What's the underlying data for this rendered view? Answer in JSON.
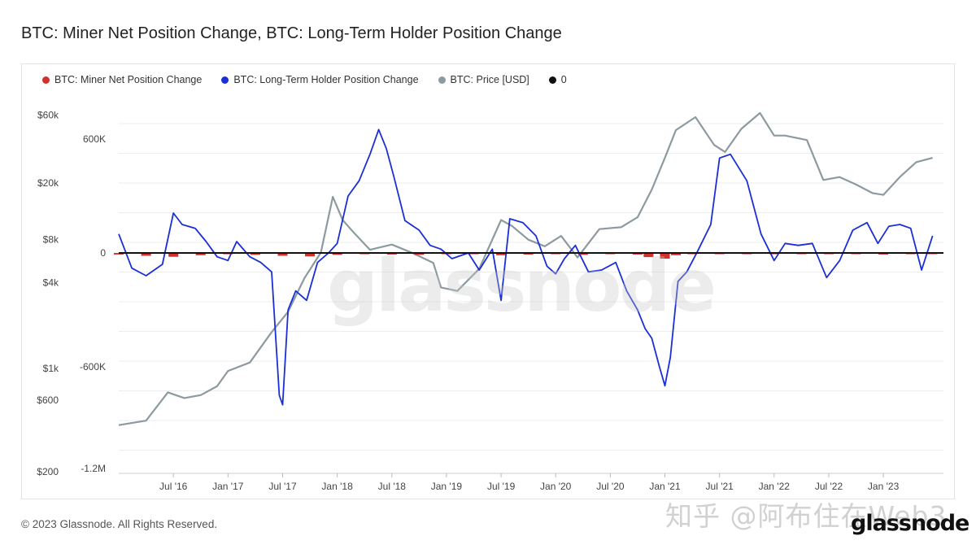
{
  "header": {
    "title": "BTC: Miner Net Position Change, BTC: Long-Term Holder Position Change"
  },
  "legend": [
    {
      "label": "BTC: Miner Net Position Change",
      "color": "#d0312d"
    },
    {
      "label": "BTC: Long-Term Holder Position Change",
      "color": "#1a2fd6"
    },
    {
      "label": "BTC: Price [USD]",
      "color": "#8d9aa0"
    },
    {
      "label": "0",
      "color": "#111111"
    }
  ],
  "footer": {
    "copyright": "© 2023 Glassnode. All Rights Reserved.",
    "watermark_text": "知乎 @阿布住在Web3",
    "logo_text": "glassnode"
  },
  "chart_watermark": "glassnode",
  "chart_data": {
    "type": "line",
    "x_range": [
      "2016-01",
      "2023-06"
    ],
    "x_ticks": [
      "Jul '16",
      "Jan '17",
      "Jul '17",
      "Jan '18",
      "Jul '18",
      "Jan '19",
      "Jul '19",
      "Jan '20",
      "Jul '20",
      "Jan '21",
      "Jul '21",
      "Jan '22",
      "Jul '22",
      "Jan '23"
    ],
    "left_axis_price": {
      "scale": "log",
      "ticks": [
        "$200",
        "$600",
        "$1k",
        "$4k",
        "$8k",
        "$20k",
        "$60k"
      ]
    },
    "right_axis_position": {
      "scale": "linear",
      "ticks": [
        "600K",
        "0",
        "-600K",
        "-1.2M"
      ],
      "range": [
        -1200000,
        750000
      ]
    },
    "series": [
      {
        "name": "BTC: Long-Term Holder Position Change",
        "color": "#1a2fd6",
        "x": [
          2016.0,
          2016.12,
          2016.25,
          2016.4,
          2016.5,
          2016.58,
          2016.7,
          2016.8,
          2016.9,
          2017.0,
          2017.08,
          2017.2,
          2017.3,
          2017.4,
          2017.47,
          2017.5,
          2017.55,
          2017.62,
          2017.72,
          2017.82,
          2017.92,
          2018.0,
          2018.1,
          2018.2,
          2018.3,
          2018.38,
          2018.45,
          2018.52,
          2018.62,
          2018.75,
          2018.85,
          2018.95,
          2019.05,
          2019.2,
          2019.3,
          2019.42,
          2019.5,
          2019.58,
          2019.7,
          2019.82,
          2019.92,
          2020.0,
          2020.08,
          2020.18,
          2020.3,
          2020.42,
          2020.55,
          2020.65,
          2020.75,
          2020.82,
          2020.88,
          2020.95,
          2021.0,
          2021.05,
          2021.12,
          2021.2,
          2021.3,
          2021.42,
          2021.5,
          2021.6,
          2021.75,
          2021.88,
          2022.0,
          2022.1,
          2022.22,
          2022.35,
          2022.48,
          2022.6,
          2022.72,
          2022.85,
          2022.95,
          2023.05,
          2023.15,
          2023.25,
          2023.35,
          2023.45
        ],
        "values": [
          100000,
          -80000,
          -120000,
          -60000,
          210000,
          150000,
          130000,
          60000,
          -20000,
          -40000,
          60000,
          -20000,
          -50000,
          -100000,
          -750000,
          -800000,
          -300000,
          -200000,
          -250000,
          -50000,
          0,
          50000,
          300000,
          380000,
          520000,
          650000,
          550000,
          400000,
          170000,
          120000,
          40000,
          20000,
          -30000,
          0,
          -90000,
          20000,
          -250000,
          180000,
          160000,
          90000,
          -70000,
          -110000,
          -30000,
          40000,
          -100000,
          -90000,
          -50000,
          -200000,
          -300000,
          -400000,
          -450000,
          -600000,
          -700000,
          -550000,
          -150000,
          -100000,
          10000,
          150000,
          500000,
          520000,
          380000,
          100000,
          -40000,
          50000,
          40000,
          50000,
          -130000,
          -40000,
          120000,
          160000,
          50000,
          140000,
          150000,
          130000,
          -90000,
          90000
        ]
      },
      {
        "name": "BTC: Miner Net Position Change",
        "color": "#d0312d",
        "x": [
          2016.0,
          2016.25,
          2016.5,
          2016.75,
          2017.0,
          2017.25,
          2017.5,
          2017.75,
          2018.0,
          2018.25,
          2018.5,
          2018.75,
          2019.0,
          2019.25,
          2019.5,
          2019.75,
          2020.0,
          2020.25,
          2020.5,
          2020.75,
          2020.85,
          2021.0,
          2021.1,
          2021.25,
          2021.5,
          2021.75,
          2022.0,
          2022.25,
          2022.5,
          2022.75,
          2023.0,
          2023.25,
          2023.45
        ],
        "values": [
          -8000,
          -15000,
          -20000,
          -12000,
          -6000,
          -10000,
          -15000,
          -18000,
          -10000,
          -5000,
          -8000,
          -10000,
          -6000,
          -4000,
          -12000,
          -8000,
          -5000,
          -10000,
          -6000,
          -8000,
          -22000,
          -30000,
          -12000,
          -5000,
          -4000,
          -3000,
          -5000,
          -3000,
          -6000,
          -4000,
          -8000,
          -5000,
          -3000
        ]
      },
      {
        "name": "BTC: Price [USD]",
        "color": "#8d9aa0",
        "x": [
          2016.0,
          2016.25,
          2016.45,
          2016.6,
          2016.75,
          2016.9,
          2017.0,
          2017.2,
          2017.4,
          2017.55,
          2017.7,
          2017.85,
          2017.96,
          2018.05,
          2018.15,
          2018.3,
          2018.5,
          2018.7,
          2018.88,
          2018.95,
          2019.1,
          2019.3,
          2019.5,
          2019.6,
          2019.75,
          2019.9,
          2020.05,
          2020.2,
          2020.4,
          2020.6,
          2020.75,
          2020.88,
          2021.0,
          2021.1,
          2021.28,
          2021.45,
          2021.55,
          2021.7,
          2021.87,
          2022.0,
          2022.1,
          2022.3,
          2022.45,
          2022.6,
          2022.75,
          2022.9,
          2023.0,
          2023.15,
          2023.3,
          2023.45
        ],
        "values": [
          400,
          430,
          680,
          620,
          650,
          750,
          960,
          1100,
          1800,
          2500,
          4300,
          6500,
          16000,
          11000,
          9000,
          6800,
          7400,
          6400,
          5500,
          3700,
          3500,
          5000,
          11000,
          10000,
          8000,
          7200,
          8500,
          6000,
          9500,
          9800,
          11500,
          18000,
          30000,
          47000,
          58000,
          37000,
          33000,
          48000,
          62000,
          43000,
          43000,
          40000,
          21000,
          22000,
          19500,
          17000,
          16500,
          22000,
          28000,
          30000
        ]
      }
    ],
    "zero_line_value": 0
  }
}
